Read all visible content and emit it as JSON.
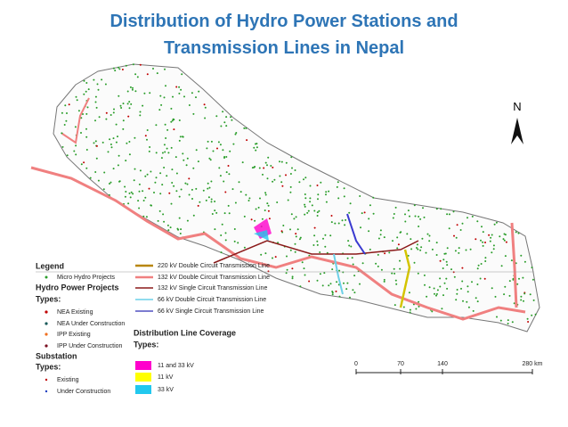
{
  "title": [
    "Distribution of Hydro Power Stations and",
    "Transmission Lines in Nepal"
  ],
  "north": "N",
  "legend": {
    "title": "Legend",
    "micro": "Micro Hydro Projects",
    "hydro": {
      "heading": "Hydro Power Projects",
      "types": "Types:",
      "items": [
        "NEA Existing",
        "NEA Under Construction",
        "IPP Existing",
        "IPP Under Construction"
      ]
    },
    "substation": {
      "heading": "Substation",
      "types": "Types:",
      "items": [
        "Existing",
        "Under Construction"
      ]
    },
    "lines": [
      "220  kV Double Circuit Transmission Line",
      "132  kV Double Circuit Transmission Line",
      "132  kV Single Circuit Transmission Line",
      "66  kV Double Circuit Transmission Line",
      "66  kV Single Circuit Transmission Line"
    ],
    "distribution": {
      "heading": "Distribution Line Coverage",
      "types": "Types:",
      "items": [
        "11 and 33 kV",
        "11 kV",
        "33 kV"
      ]
    }
  },
  "scale": [
    "0",
    "70",
    "140",
    "280 km"
  ]
}
